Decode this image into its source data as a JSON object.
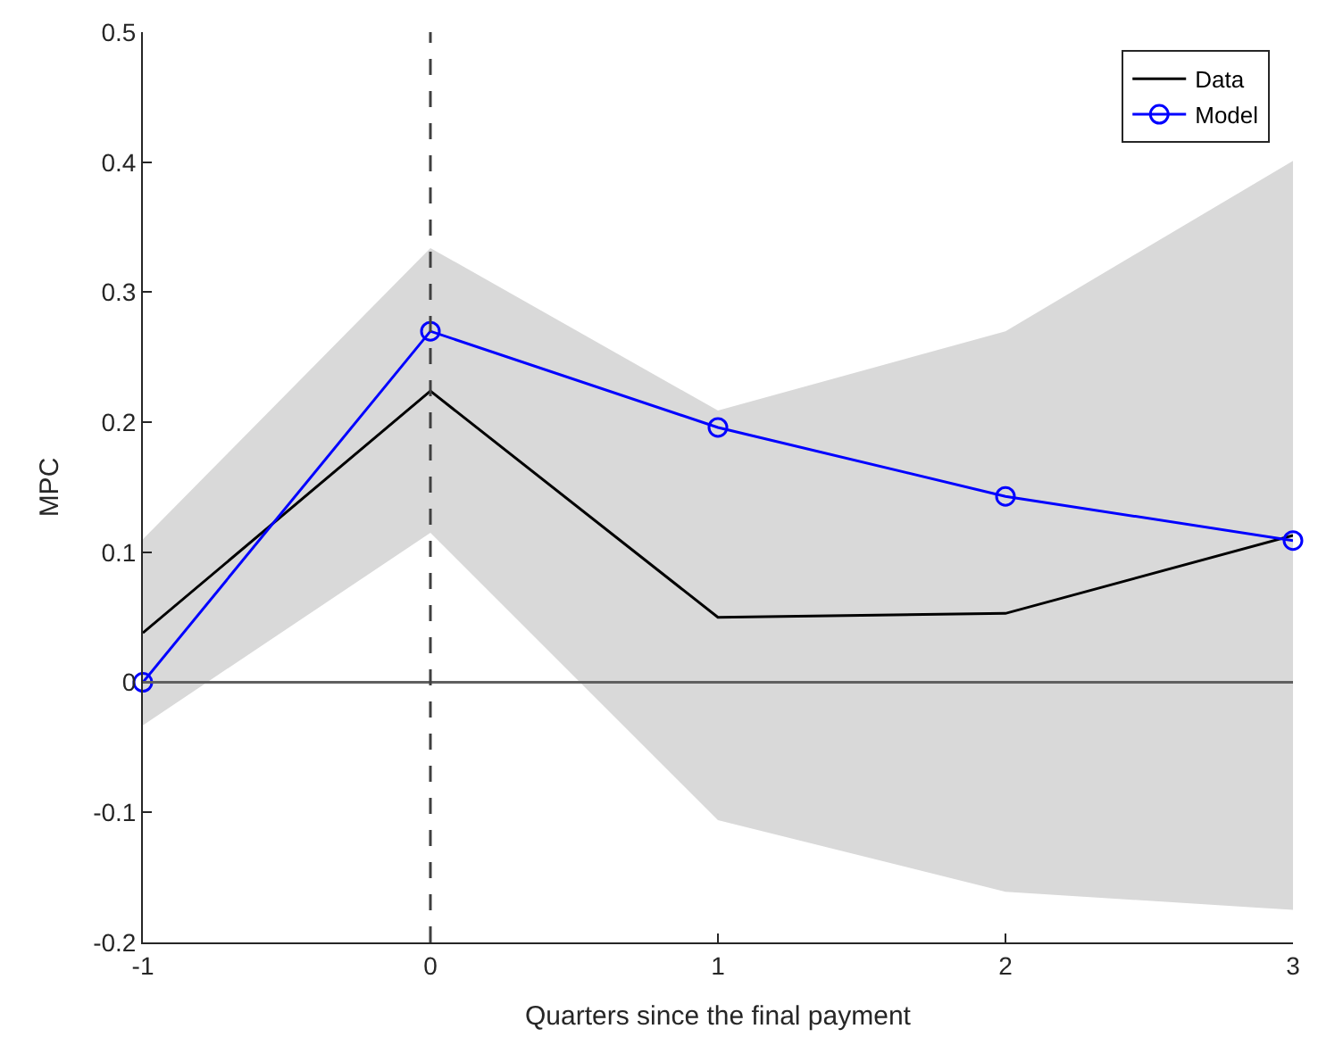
{
  "chart_data": {
    "type": "line",
    "xlabel": "Quarters since the final payment",
    "ylabel": "MPC",
    "x": [
      -1,
      0,
      1,
      2,
      3
    ],
    "series": [
      {
        "name": "Data",
        "color": "#000000",
        "marker": "none",
        "values": [
          0.038,
          0.224,
          0.05,
          0.053,
          0.113
        ],
        "lower": [
          -0.033,
          0.115,
          -0.106,
          -0.161,
          -0.175
        ],
        "upper": [
          0.11,
          0.334,
          0.209,
          0.27,
          0.401
        ]
      },
      {
        "name": "Model",
        "color": "#0000ff",
        "marker": "circle",
        "values": [
          0,
          0.27,
          0.196,
          0.143,
          0.109
        ]
      }
    ],
    "ref_lines": [
      {
        "axis": "y",
        "value": 0,
        "color": "#606060",
        "line_style": "solid"
      },
      {
        "axis": "x",
        "value": 0,
        "color": "#404040",
        "line_style": "dashed"
      }
    ],
    "xlim": [
      -1,
      3
    ],
    "xticks": [
      -1,
      0,
      1,
      2,
      3
    ],
    "ylim": [
      -0.2,
      0.5
    ],
    "yticks": [
      -0.2,
      -0.1,
      0,
      0.1,
      0.2,
      0.3,
      0.4,
      0.5
    ],
    "legend": "top right"
  }
}
